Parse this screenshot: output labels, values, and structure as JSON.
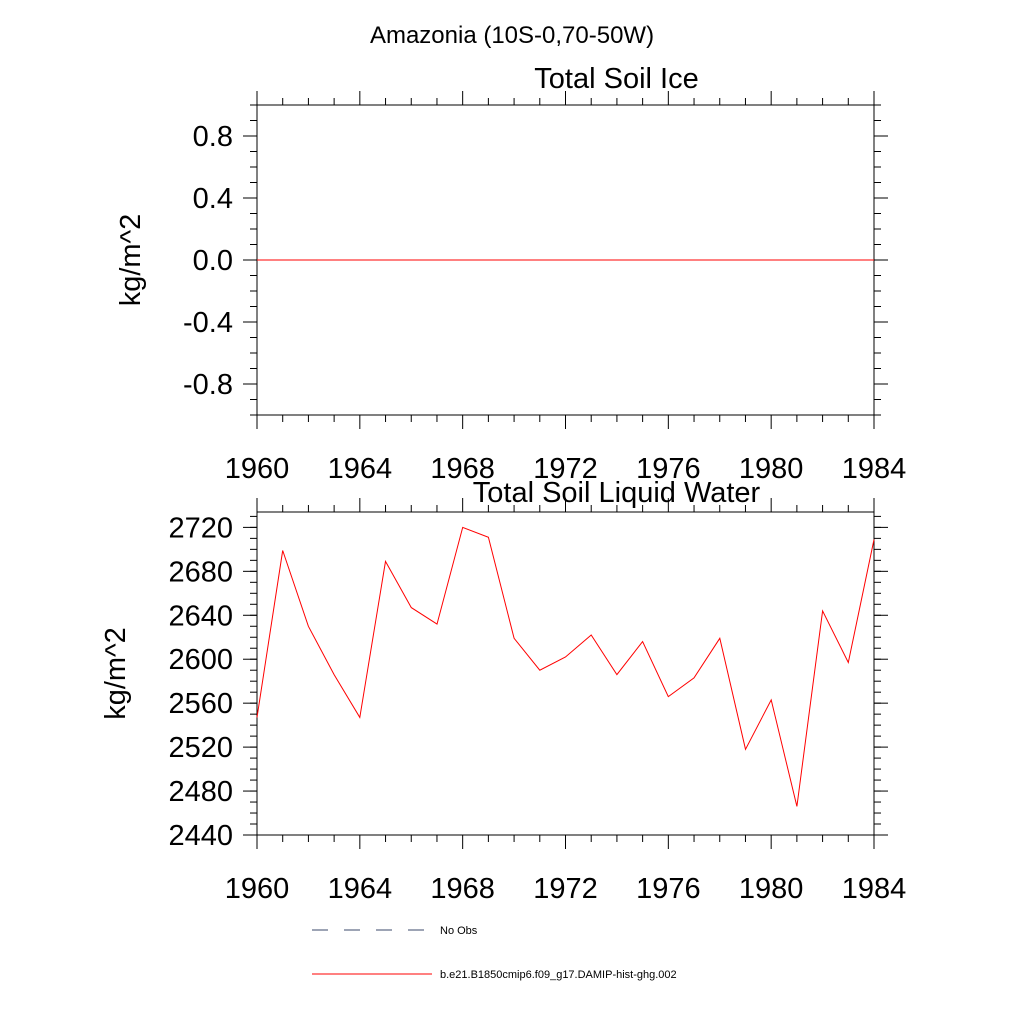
{
  "figure": {
    "title": "Amazonia (10S-0,70-50W)"
  },
  "chart_data": [
    {
      "type": "line",
      "title": "Total Soil Ice",
      "xlabel": "",
      "ylabel": "kg/m^2",
      "xlim": [
        1960,
        1984
      ],
      "ylim": [
        -1.0,
        1.0
      ],
      "x_ticks": [
        "1960",
        "1964",
        "1968",
        "1972",
        "1976",
        "1980",
        "1984"
      ],
      "y_ticks": [
        "0.8",
        "0.4",
        "0.0",
        "-0.4",
        "-0.8"
      ],
      "series": [
        {
          "name": "b.e21.B1850cmip6.f09_g17.DAMIP-hist-ghg.002",
          "color": "#ff0000",
          "x": [
            1960,
            1961,
            1962,
            1963,
            1964,
            1965,
            1966,
            1967,
            1968,
            1969,
            1970,
            1971,
            1972,
            1973,
            1974,
            1975,
            1976,
            1977,
            1978,
            1979,
            1980,
            1981,
            1982,
            1983,
            1984
          ],
          "values": [
            0,
            0,
            0,
            0,
            0,
            0,
            0,
            0,
            0,
            0,
            0,
            0,
            0,
            0,
            0,
            0,
            0,
            0,
            0,
            0,
            0,
            0,
            0,
            0,
            0
          ]
        }
      ]
    },
    {
      "type": "line",
      "title": "Total Soil Liquid Water",
      "xlabel": "",
      "ylabel": "kg/m^2",
      "xlim": [
        1960,
        1984
      ],
      "ylim": [
        2440,
        2734
      ],
      "x_ticks": [
        "1960",
        "1964",
        "1968",
        "1972",
        "1976",
        "1980",
        "1984"
      ],
      "y_ticks": [
        "2720",
        "2680",
        "2640",
        "2600",
        "2560",
        "2520",
        "2480",
        "2440"
      ],
      "series": [
        {
          "name": "b.e21.B1850cmip6.f09_g17.DAMIP-hist-ghg.002",
          "color": "#ff0000",
          "x": [
            1960,
            1961,
            1962,
            1963,
            1964,
            1965,
            1966,
            1967,
            1968,
            1969,
            1970,
            1971,
            1972,
            1973,
            1974,
            1975,
            1976,
            1977,
            1978,
            1979,
            1980,
            1981,
            1982,
            1983,
            1984
          ],
          "values": [
            2547,
            2699,
            2630,
            2586,
            2547,
            2689,
            2647,
            2632,
            2720,
            2711,
            2619,
            2590,
            2602,
            2622,
            2586,
            2616,
            2566,
            2583,
            2619,
            2518,
            2563,
            2466,
            2644,
            2597,
            2709
          ]
        }
      ]
    }
  ],
  "legend": {
    "items": [
      {
        "label": "No Obs",
        "style": "dashed",
        "color": "#3b4a6b"
      },
      {
        "label": "b.e21.B1850cmip6.f09_g17.DAMIP-hist-ghg.002",
        "style": "solid",
        "color": "#ff0000"
      }
    ]
  }
}
